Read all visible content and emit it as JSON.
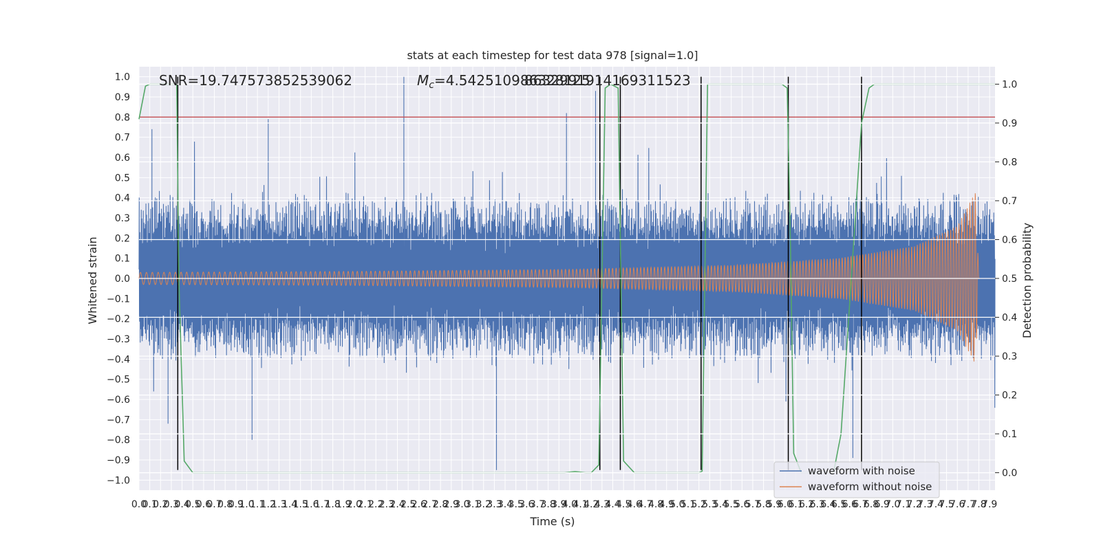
{
  "chart_data": {
    "type": "line",
    "title": "stats at each timestep for test data 978 [signal=1.0]",
    "xlabel": "Time (s)",
    "ylabel": "Whitened strain",
    "y2label": "Detection probability",
    "xlim": [
      0.0,
      7.95
    ],
    "ylim": [
      -1.05,
      1.05
    ],
    "y2lim": [
      -0.045,
      1.045
    ],
    "grid": true,
    "legend_position": "bottom-right",
    "annotations": {
      "snr": "SNR=19.747573852539062",
      "mc_symbol": "M",
      "mc_sub": "c",
      "mc_value": "=4.542510986328125",
      "overlap": "8632991914169311523"
    },
    "x_ticks": [
      "0.0",
      "0.1",
      "0.2",
      "0.3",
      "0.4",
      "0.5",
      "0.6",
      "0.7",
      "0.8",
      "0.9",
      "1.0",
      "1.1",
      "1.2",
      "1.3",
      "1.4",
      "1.5",
      "1.6",
      "1.7",
      "1.8",
      "1.9",
      "2.0",
      "2.1",
      "2.2",
      "2.3",
      "2.4",
      "2.5",
      "2.6",
      "2.7",
      "2.8",
      "2.9",
      "3.0",
      "3.1",
      "3.2",
      "3.3",
      "3.4",
      "3.5",
      "3.6",
      "3.7",
      "3.8",
      "3.9",
      "4.0",
      "4.1",
      "4.2",
      "4.3",
      "4.4",
      "4.5",
      "4.6",
      "4.7",
      "4.8",
      "4.9",
      "5.0",
      "5.1",
      "5.2",
      "5.3",
      "5.4",
      "5.5",
      "5.6",
      "5.7",
      "5.8",
      "5.9",
      "6.0",
      "6.1",
      "6.2",
      "6.3",
      "6.4",
      "6.5",
      "6.6",
      "6.7",
      "6.8",
      "6.9",
      "7.0",
      "7.1",
      "7.2",
      "7.3",
      "7.4",
      "7.5",
      "7.6",
      "7.7",
      "7.8",
      "7.9"
    ],
    "y_ticks": [
      "1.0",
      "0.9",
      "0.8",
      "0.7",
      "0.6",
      "0.5",
      "0.4",
      "0.3",
      "0.2",
      "0.1",
      "0.0",
      "−0.1",
      "−0.2",
      "−0.3",
      "−0.4",
      "−0.5",
      "−0.6",
      "−0.7",
      "−0.8",
      "−0.9",
      "−1.0"
    ],
    "y2_ticks": [
      "1.0",
      "0.9",
      "0.8",
      "0.7",
      "0.6",
      "0.5",
      "0.4",
      "0.3",
      "0.2",
      "0.1",
      "0.0"
    ],
    "threshold": {
      "y": 0.8,
      "color": "#c44e52"
    },
    "vlines": [
      {
        "x": 0.36,
        "y0": -0.95,
        "y1": 1.0
      },
      {
        "x": 4.28,
        "y0": -0.95,
        "y1": 1.0
      },
      {
        "x": 4.47,
        "y0": -0.95,
        "y1": 1.0
      },
      {
        "x": 5.22,
        "y0": -0.95,
        "y1": 1.0
      },
      {
        "x": 6.03,
        "y0": -0.95,
        "y1": 1.0
      },
      {
        "x": 6.71,
        "y0": -0.95,
        "y1": 1.0
      }
    ],
    "series": [
      {
        "name": "waveform with noise",
        "color": "#4c72b0",
        "axis": "left",
        "kind": "noise-envelope",
        "typical_amplitude": 0.42,
        "peaks": [
          {
            "x": 2.46,
            "y": 1.0
          },
          {
            "x": 3.32,
            "y": -0.95
          },
          {
            "x": 3.97,
            "y": 0.82
          },
          {
            "x": 4.24,
            "y": 0.93
          },
          {
            "x": 0.12,
            "y": 0.74
          },
          {
            "x": 0.27,
            "y": -0.72
          },
          {
            "x": 1.2,
            "y": 0.79
          },
          {
            "x": 1.05,
            "y": -0.8
          },
          {
            "x": 6.63,
            "y": -0.89
          }
        ]
      },
      {
        "name": "waveform without noise",
        "color": "#dd8452",
        "axis": "left",
        "kind": "chirp",
        "amplitude_points": [
          {
            "x": 0.0,
            "y": 0.03
          },
          {
            "x": 2.0,
            "y": 0.035
          },
          {
            "x": 4.0,
            "y": 0.045
          },
          {
            "x": 5.5,
            "y": 0.065
          },
          {
            "x": 6.5,
            "y": 0.1
          },
          {
            "x": 7.2,
            "y": 0.16
          },
          {
            "x": 7.6,
            "y": 0.26
          },
          {
            "x": 7.77,
            "y": 0.43
          },
          {
            "x": 7.8,
            "y": 0.0
          },
          {
            "x": 7.95,
            "y": 0.0
          }
        ]
      },
      {
        "name": "detection probability",
        "color": "#55a868",
        "axis": "right",
        "kind": "line",
        "points": [
          [
            0.0,
            0.91
          ],
          [
            0.06,
            0.995
          ],
          [
            0.1,
            1.0
          ],
          [
            0.35,
            1.0
          ],
          [
            0.37,
            0.5
          ],
          [
            0.42,
            0.03
          ],
          [
            0.5,
            0.0
          ],
          [
            3.95,
            0.0
          ],
          [
            4.05,
            0.003
          ],
          [
            4.15,
            0.0
          ],
          [
            4.2,
            0.0
          ],
          [
            4.27,
            0.02
          ],
          [
            4.33,
            0.99
          ],
          [
            4.38,
            1.0
          ],
          [
            4.45,
            0.99
          ],
          [
            4.5,
            0.03
          ],
          [
            4.6,
            0.0
          ],
          [
            5.2,
            0.0
          ],
          [
            5.23,
            0.004
          ],
          [
            5.28,
            1.0
          ],
          [
            5.97,
            1.0
          ],
          [
            6.02,
            0.99
          ],
          [
            6.05,
            0.59
          ],
          [
            6.08,
            0.05
          ],
          [
            6.15,
            0.0
          ],
          [
            6.45,
            0.0
          ],
          [
            6.52,
            0.1
          ],
          [
            6.62,
            0.52
          ],
          [
            6.71,
            0.9
          ],
          [
            6.78,
            0.99
          ],
          [
            6.83,
            1.0
          ],
          [
            7.95,
            1.0
          ]
        ]
      }
    ],
    "legend": [
      {
        "label": "waveform with noise",
        "color": "#4c72b0"
      },
      {
        "label": "waveform without noise",
        "color": "#dd8452"
      }
    ]
  }
}
